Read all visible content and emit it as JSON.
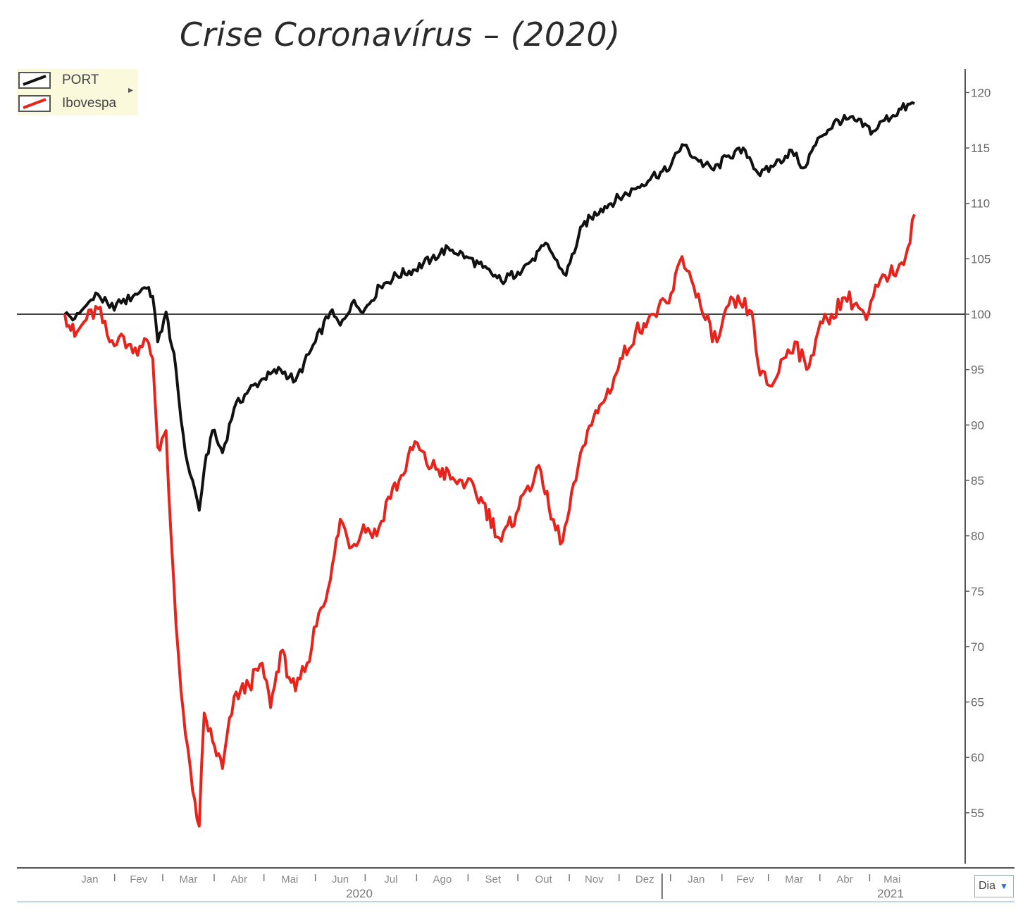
{
  "chart_data": {
    "type": "line",
    "title": "Crise Coronavírus – (2020)",
    "xlabel": "",
    "ylabel": "",
    "ylim": [
      51,
      121
    ],
    "y_ticks": [
      55,
      60,
      65,
      70,
      75,
      80,
      85,
      90,
      95,
      100,
      105,
      110,
      115,
      120
    ],
    "reference_line": 100,
    "x_range": [
      "2020-01-02",
      "2021-05-28"
    ],
    "month_ticks": [
      "Jan",
      "Fev",
      "Mar",
      "Abr",
      "Mai",
      "Jun",
      "Jul",
      "Ago",
      "Set",
      "Out",
      "Nov",
      "Dez",
      "Jan",
      "Fev",
      "Mar",
      "Abr",
      "Mai"
    ],
    "year_labels": [
      "2020",
      "2021"
    ],
    "legend_position": "top-left",
    "grid": false,
    "series": [
      {
        "name": "PORT",
        "color": "#111111",
        "points": [
          [
            "2020-01-02",
            100.0
          ],
          [
            "2020-01-08",
            99.6
          ],
          [
            "2020-01-15",
            100.8
          ],
          [
            "2020-01-22",
            101.8
          ],
          [
            "2020-01-29",
            100.6
          ],
          [
            "2020-02-05",
            101.0
          ],
          [
            "2020-02-12",
            101.6
          ],
          [
            "2020-02-19",
            102.4
          ],
          [
            "2020-02-24",
            101.6
          ],
          [
            "2020-02-27",
            97.5
          ],
          [
            "2020-03-03",
            100.2
          ],
          [
            "2020-03-09",
            95.0
          ],
          [
            "2020-03-12",
            90.5
          ],
          [
            "2020-03-16",
            86.5
          ],
          [
            "2020-03-19",
            85.0
          ],
          [
            "2020-03-23",
            82.3
          ],
          [
            "2020-03-26",
            86.0
          ],
          [
            "2020-03-31",
            89.5
          ],
          [
            "2020-04-06",
            87.5
          ],
          [
            "2020-04-13",
            91.5
          ],
          [
            "2020-04-22",
            93.2
          ],
          [
            "2020-05-01",
            94.2
          ],
          [
            "2020-05-11",
            95.0
          ],
          [
            "2020-05-20",
            94.0
          ],
          [
            "2020-06-01",
            97.5
          ],
          [
            "2020-06-10",
            100.2
          ],
          [
            "2020-06-16",
            99.0
          ],
          [
            "2020-06-23",
            101.0
          ],
          [
            "2020-07-01",
            100.5
          ],
          [
            "2020-07-10",
            102.5
          ],
          [
            "2020-07-20",
            103.5
          ],
          [
            "2020-07-30",
            104.0
          ],
          [
            "2020-08-10",
            105.0
          ],
          [
            "2020-08-20",
            106.0
          ],
          [
            "2020-08-31",
            105.2
          ],
          [
            "2020-09-10",
            104.2
          ],
          [
            "2020-09-21",
            103.0
          ],
          [
            "2020-10-01",
            103.8
          ],
          [
            "2020-10-10",
            105.0
          ],
          [
            "2020-10-19",
            106.3
          ],
          [
            "2020-10-26",
            104.2
          ],
          [
            "2020-10-30",
            103.5
          ],
          [
            "2020-11-09",
            108.0
          ],
          [
            "2020-11-20",
            109.5
          ],
          [
            "2020-12-01",
            110.5
          ],
          [
            "2020-12-11",
            111.3
          ],
          [
            "2020-12-21",
            112.5
          ],
          [
            "2020-12-31",
            113.0
          ],
          [
            "2021-01-08",
            115.3
          ],
          [
            "2021-01-18",
            113.8
          ],
          [
            "2021-01-27",
            113.0
          ],
          [
            "2021-02-05",
            114.3
          ],
          [
            "2021-02-15",
            114.8
          ],
          [
            "2021-02-24",
            112.5
          ],
          [
            "2021-03-05",
            113.5
          ],
          [
            "2021-03-15",
            114.8
          ],
          [
            "2021-03-22",
            113.2
          ],
          [
            "2021-04-01",
            116.0
          ],
          [
            "2021-04-12",
            117.5
          ],
          [
            "2021-04-22",
            117.5
          ],
          [
            "2021-05-03",
            116.5
          ],
          [
            "2021-05-10",
            117.5
          ],
          [
            "2021-05-20",
            118.5
          ],
          [
            "2021-05-28",
            119.0
          ]
        ]
      },
      {
        "name": "Ibovespa",
        "color": "#e8231c",
        "points": [
          [
            "2020-01-02",
            100.0
          ],
          [
            "2020-01-08",
            98.0
          ],
          [
            "2020-01-15",
            99.5
          ],
          [
            "2020-01-22",
            100.5
          ],
          [
            "2020-01-29",
            97.5
          ],
          [
            "2020-02-05",
            98.2
          ],
          [
            "2020-02-12",
            96.5
          ],
          [
            "2020-02-19",
            97.8
          ],
          [
            "2020-02-24",
            96.0
          ],
          [
            "2020-02-27",
            88.0
          ],
          [
            "2020-03-03",
            89.5
          ],
          [
            "2020-03-06",
            80.0
          ],
          [
            "2020-03-09",
            72.0
          ],
          [
            "2020-03-12",
            66.0
          ],
          [
            "2020-03-16",
            61.0
          ],
          [
            "2020-03-19",
            57.0
          ],
          [
            "2020-03-23",
            53.8
          ],
          [
            "2020-03-26",
            64.0
          ],
          [
            "2020-03-31",
            61.5
          ],
          [
            "2020-04-06",
            59.0
          ],
          [
            "2020-04-13",
            65.5
          ],
          [
            "2020-04-22",
            66.5
          ],
          [
            "2020-04-30",
            68.5
          ],
          [
            "2020-05-05",
            64.5
          ],
          [
            "2020-05-11",
            69.5
          ],
          [
            "2020-05-20",
            66.0
          ],
          [
            "2020-05-27",
            68.5
          ],
          [
            "2020-06-03",
            73.0
          ],
          [
            "2020-06-10",
            76.0
          ],
          [
            "2020-06-16",
            81.5
          ],
          [
            "2020-06-23",
            79.0
          ],
          [
            "2020-06-30",
            81.0
          ],
          [
            "2020-07-08",
            80.0
          ],
          [
            "2020-07-15",
            83.5
          ],
          [
            "2020-07-24",
            85.5
          ],
          [
            "2020-07-31",
            88.5
          ],
          [
            "2020-08-07",
            86.5
          ],
          [
            "2020-08-14",
            86.0
          ],
          [
            "2020-08-24",
            85.0
          ],
          [
            "2020-08-31",
            84.8
          ],
          [
            "2020-09-10",
            83.0
          ],
          [
            "2020-09-21",
            79.5
          ],
          [
            "2020-09-30",
            82.0
          ],
          [
            "2020-10-07",
            84.5
          ],
          [
            "2020-10-15",
            85.8
          ],
          [
            "2020-10-21",
            81.5
          ],
          [
            "2020-10-28",
            79.5
          ],
          [
            "2020-11-05",
            85.0
          ],
          [
            "2020-11-12",
            89.5
          ],
          [
            "2020-11-23",
            92.5
          ],
          [
            "2020-12-03",
            96.0
          ],
          [
            "2020-12-11",
            98.5
          ],
          [
            "2020-12-21",
            100.0
          ],
          [
            "2020-12-31",
            101.0
          ],
          [
            "2021-01-08",
            105.2
          ],
          [
            "2021-01-15",
            102.5
          ],
          [
            "2021-01-22",
            99.5
          ],
          [
            "2021-01-29",
            97.5
          ],
          [
            "2021-02-05",
            100.8
          ],
          [
            "2021-02-12",
            101.0
          ],
          [
            "2021-02-19",
            100.2
          ],
          [
            "2021-02-24",
            94.5
          ],
          [
            "2021-03-03",
            93.5
          ],
          [
            "2021-03-10",
            96.0
          ],
          [
            "2021-03-17",
            97.5
          ],
          [
            "2021-03-24",
            95.0
          ],
          [
            "2021-03-31",
            98.5
          ],
          [
            "2021-04-08",
            100.0
          ],
          [
            "2021-04-16",
            101.5
          ],
          [
            "2021-04-23",
            101.0
          ],
          [
            "2021-04-29",
            99.5
          ],
          [
            "2021-05-06",
            102.5
          ],
          [
            "2021-05-13",
            103.5
          ],
          [
            "2021-05-19",
            104.5
          ],
          [
            "2021-05-24",
            106.0
          ],
          [
            "2021-05-28",
            109.0
          ]
        ]
      }
    ]
  },
  "legend": {
    "items": [
      {
        "label": "PORT",
        "color": "#111111"
      },
      {
        "label": "Ibovespa",
        "color": "#e8231c"
      }
    ],
    "expand_icon": "arrow-right-icon"
  },
  "controls": {
    "period_select": {
      "value": "Dia",
      "icon": "chevron-down-icon"
    }
  }
}
